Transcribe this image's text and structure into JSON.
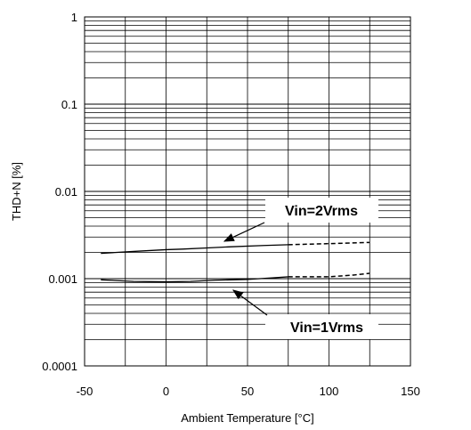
{
  "chart_data": {
    "type": "line",
    "xlabel": "Ambient Temperature [°C]",
    "ylabel": "THD+N [%]",
    "xlim": [
      -50,
      150
    ],
    "ylim": [
      0.0001,
      1
    ],
    "y_scale": "log",
    "grid": true,
    "x_ticks": [
      "-50",
      "0",
      "50",
      "100",
      "150"
    ],
    "y_ticks": [
      "0.0001",
      "0.001",
      "0.01",
      "0.1",
      "1"
    ],
    "series": [
      {
        "name": "Vin=2Vrms",
        "measured": {
          "x": [
            -40,
            -20,
            0,
            10,
            25,
            40,
            60,
            75
          ],
          "y": [
            0.00195,
            0.00205,
            0.00215,
            0.00218,
            0.00225,
            0.00232,
            0.0024,
            0.00245
          ]
        },
        "extrapolated": {
          "x": [
            75,
            100,
            125
          ],
          "y": [
            0.00245,
            0.00252,
            0.0026
          ]
        }
      },
      {
        "name": "Vin=1Vrms",
        "measured": {
          "x": [
            -40,
            -20,
            0,
            15,
            30,
            50,
            65,
            75
          ],
          "y": [
            0.00097,
            0.00093,
            0.00092,
            0.00093,
            0.00096,
            0.00098,
            0.00102,
            0.00105
          ]
        },
        "extrapolated": {
          "x": [
            75,
            100,
            115,
            125
          ],
          "y": [
            0.00105,
            0.00105,
            0.0011,
            0.00115
          ]
        }
      }
    ],
    "annotations": [
      {
        "text": "Vin=2Vrms",
        "series": 0
      },
      {
        "text": "Vin=1Vrms",
        "series": 1
      }
    ],
    "colors": {
      "line": "#000000",
      "grid": "#000000",
      "background": "#ffffff"
    }
  }
}
